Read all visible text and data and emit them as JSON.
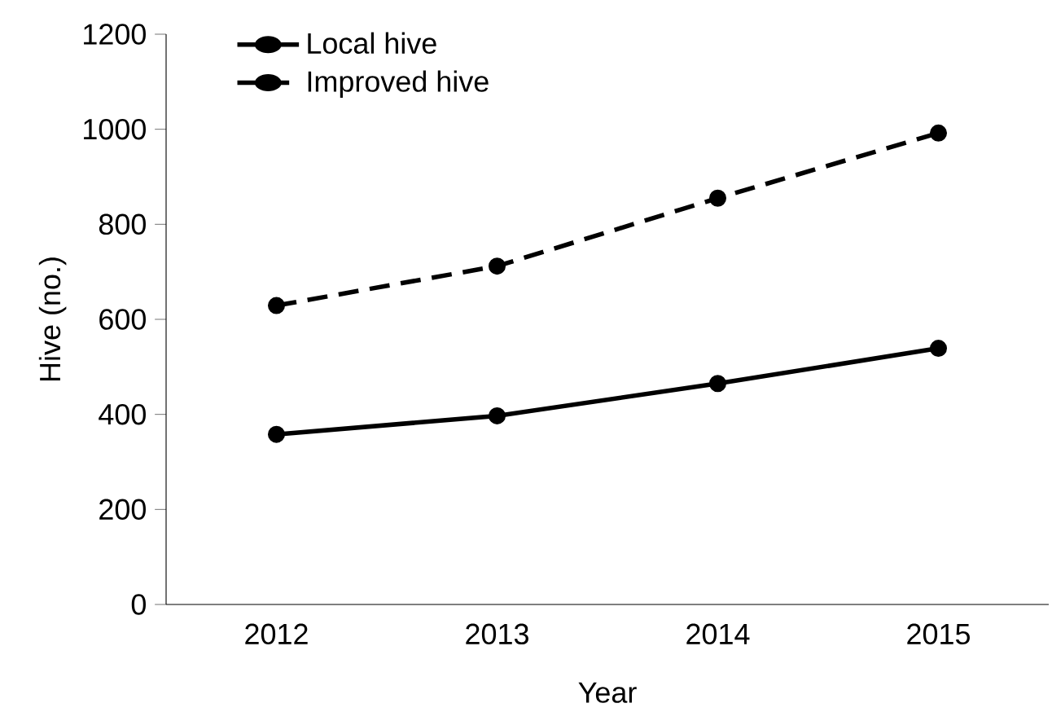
{
  "chart_data": {
    "type": "line",
    "xlabel": "Year",
    "ylabel": "Hive (no.)",
    "categories": [
      "2012",
      "2013",
      "2014",
      "2015"
    ],
    "series": [
      {
        "name": "Local hive",
        "color": "#000000",
        "values": [
          358,
          397,
          465,
          539
        ],
        "line_style": "solid"
      },
      {
        "name": "Improved hive",
        "color": "#000000",
        "values": [
          629,
          712,
          855,
          992
        ],
        "line_style": "dashed"
      }
    ],
    "ylim": [
      0,
      1200
    ],
    "yticks": [
      0,
      200,
      400,
      600,
      800,
      1000,
      1200
    ],
    "grid": false,
    "legend": "top left",
    "marker": "circle"
  }
}
